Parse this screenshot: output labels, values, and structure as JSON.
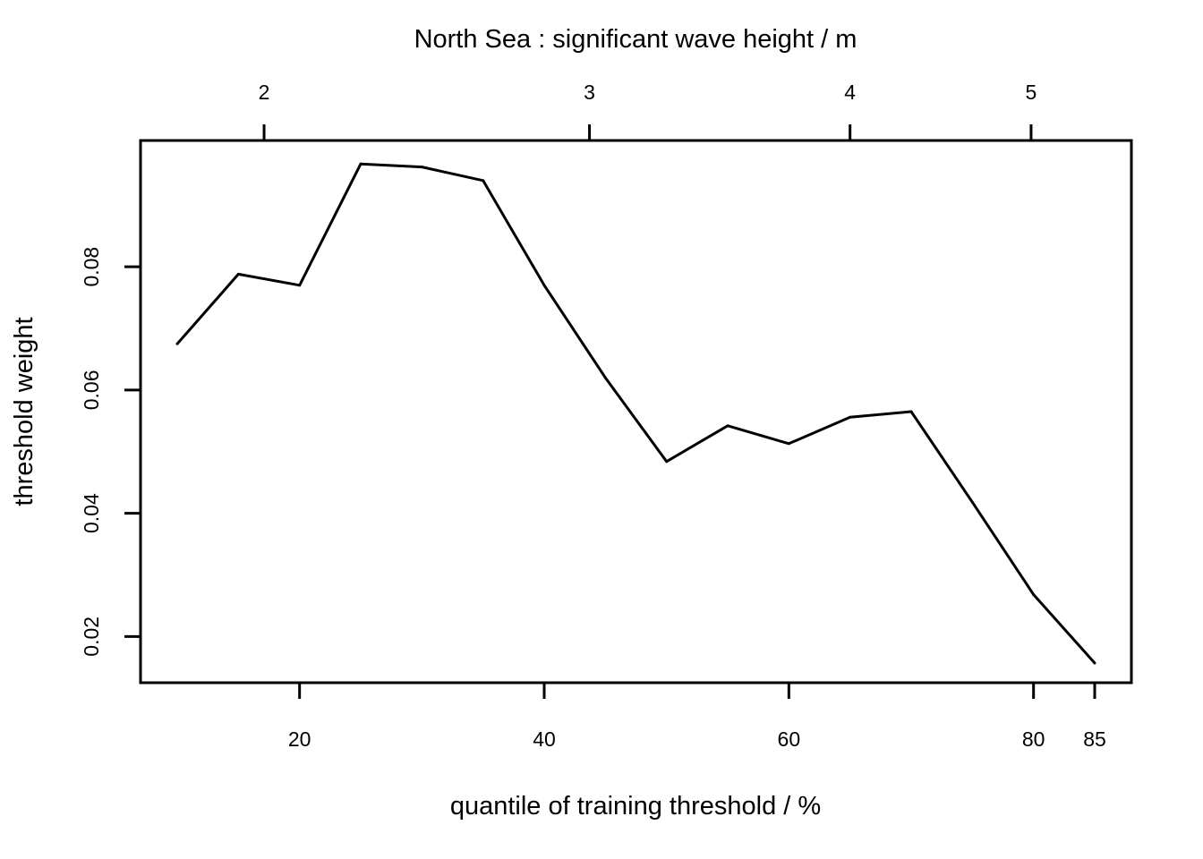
{
  "chart_data": {
    "type": "line",
    "title": "North Sea : significant wave height / m",
    "xlabel": "quantile of training threshold / %",
    "ylabel": "threshold weight",
    "xlim": [
      7,
      88
    ],
    "ylim": [
      0.0125,
      0.1005
    ],
    "x_ticks": [
      20,
      40,
      60,
      80,
      85
    ],
    "x_tick_labels": [
      "20",
      "40",
      "60",
      "80",
      "85"
    ],
    "y_ticks": [
      0.02,
      0.04,
      0.06,
      0.08
    ],
    "y_tick_labels": [
      "0.02",
      "0.04",
      "0.06",
      "0.08"
    ],
    "top_axis": {
      "tick_positions": [
        17.1,
        43.7,
        65.0,
        79.8
      ],
      "tick_labels": [
        "2",
        "3",
        "4",
        "5"
      ]
    },
    "grid": false,
    "legend": "none",
    "line_color": "#000000",
    "series": [
      {
        "x": [
          10,
          15,
          20,
          25,
          30,
          35,
          40,
          45,
          50,
          55,
          60,
          65,
          70,
          75,
          80,
          85
        ],
        "values": [
          0.0675,
          0.0788,
          0.077,
          0.0967,
          0.0962,
          0.094,
          0.077,
          0.062,
          0.0484,
          0.0542,
          0.0513,
          0.0556,
          0.0565,
          0.0418,
          0.0268,
          0.0157
        ]
      }
    ]
  }
}
